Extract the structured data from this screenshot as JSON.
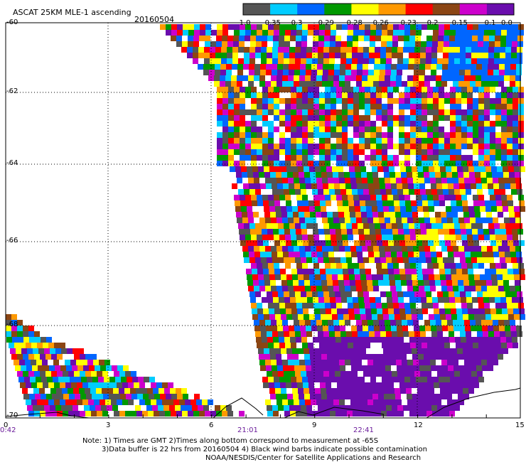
{
  "header": {
    "title": "ASCAT 25KM MLE-1 ascending",
    "date": "20160504"
  },
  "colorbar": {
    "colors": [
      "#555555",
      "#00ccff",
      "#0066ff",
      "#009900",
      "#ffff00",
      "#ff9900",
      "#ff0000",
      "#8b4513",
      "#cc00cc",
      "#6a0dad"
    ],
    "labels": [
      "-1.0",
      "-0.35",
      "-0.3",
      "-0.29",
      "-0.28",
      "-0.26",
      "-0.23",
      "-0.2",
      "-0.15",
      "-0.1",
      "0.0"
    ]
  },
  "axes": {
    "y_labels": [
      "-60",
      "-62",
      "-64",
      "-66",
      "-68",
      "-70"
    ],
    "x_labels": [
      "0",
      "3",
      "6",
      "9",
      "12",
      "15"
    ],
    "time_labels": [
      "0:42",
      "21:01",
      "22:41"
    ]
  },
  "notes": {
    "line1": "Note: 1) Times are GMT 2)Times along bottom correspond to measurement at -65S",
    "line2": "3)Data buffer is 22 hrs from 20160504 4) Black wind barbs indicate possible contamination",
    "line3": "NOAA/NESDIS/Center for Satellite Applications and Research"
  }
}
